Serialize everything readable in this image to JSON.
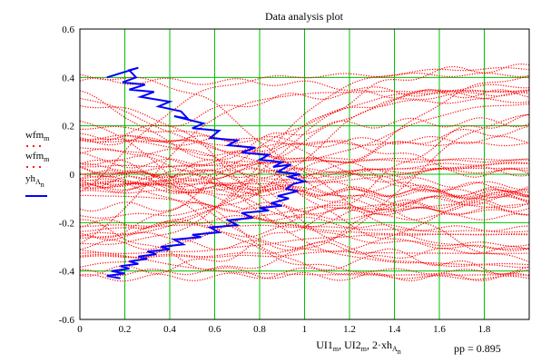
{
  "chart_data": {
    "type": "scatter",
    "title": "Data analysis plot",
    "xlabel": {
      "parts": [
        "UI1",
        "m",
        ", UI2",
        "m",
        ", 2·xh",
        "A",
        "n"
      ],
      "plain": "UI1m, UI2m, 2·xhAn"
    },
    "annotation": "pp = 0.895",
    "xlim": [
      0,
      2.0
    ],
    "ylim": [
      -0.6,
      0.6
    ],
    "x_ticks": [
      "0",
      "0.2",
      "0.4",
      "0.6",
      "0.8",
      "1",
      "1.2",
      "1.4",
      "1.6",
      "1.8"
    ],
    "y_ticks": [
      "0.6",
      "0.4",
      "0.2",
      "0",
      "-0.2",
      "-0.4",
      "-0.6"
    ],
    "grid": true,
    "legend": {
      "placement": "left",
      "entries": [
        {
          "label": "wfm",
          "sub": "m",
          "style": "dots",
          "color": "#ff0000"
        },
        {
          "label": "wfm",
          "sub": "m",
          "style": "dots",
          "color": "#ff0000"
        },
        {
          "label": "yh",
          "sub": "A",
          "subsub": "n",
          "style": "line",
          "color": "#0000ff"
        }
      ]
    },
    "colors": {
      "dots": "#ff0000",
      "line": "#0000ff",
      "grid": "#00c000"
    },
    "series": [
      {
        "name": "yhAn",
        "style": "line",
        "x": [
          0.12,
          0.26,
          0.22,
          0.25,
          0.19,
          0.29,
          0.22,
          0.33,
          0.27,
          0.4,
          0.35,
          0.45,
          0.48,
          0.42,
          0.55,
          0.5,
          0.62,
          0.58,
          0.7,
          0.66,
          0.78,
          0.72,
          0.84,
          0.8,
          0.9,
          0.86,
          0.94,
          0.88,
          0.98,
          0.93,
          1.0,
          0.95,
          0.92,
          0.97,
          0.88,
          0.93,
          0.85,
          0.9,
          0.8,
          0.84,
          0.72,
          0.77,
          0.66,
          0.7,
          0.58,
          0.62,
          0.5,
          0.54,
          0.42,
          0.46,
          0.36,
          0.4,
          0.3,
          0.34,
          0.26,
          0.3,
          0.22,
          0.26,
          0.18,
          0.22,
          0.14,
          0.2,
          0.12,
          0.18
        ],
        "y": [
          0.4,
          0.44,
          0.43,
          0.4,
          0.38,
          0.37,
          0.35,
          0.34,
          0.32,
          0.3,
          0.28,
          0.26,
          0.23,
          0.24,
          0.21,
          0.19,
          0.18,
          0.15,
          0.14,
          0.12,
          0.11,
          0.09,
          0.08,
          0.06,
          0.05,
          0.03,
          0.04,
          0.01,
          0.0,
          -0.01,
          -0.03,
          -0.04,
          -0.06,
          -0.07,
          -0.09,
          -0.1,
          -0.12,
          -0.13,
          -0.14,
          -0.15,
          -0.16,
          -0.18,
          -0.19,
          -0.21,
          -0.22,
          -0.24,
          -0.25,
          -0.26,
          -0.27,
          -0.29,
          -0.3,
          -0.31,
          -0.32,
          -0.33,
          -0.34,
          -0.35,
          -0.36,
          -0.37,
          -0.38,
          -0.39,
          -0.4,
          -0.41,
          -0.42,
          -0.43
        ]
      }
    ],
    "wfm_traces": {
      "description_free": true,
      "count": 60,
      "y_range": [
        -0.45,
        0.45
      ]
    }
  }
}
